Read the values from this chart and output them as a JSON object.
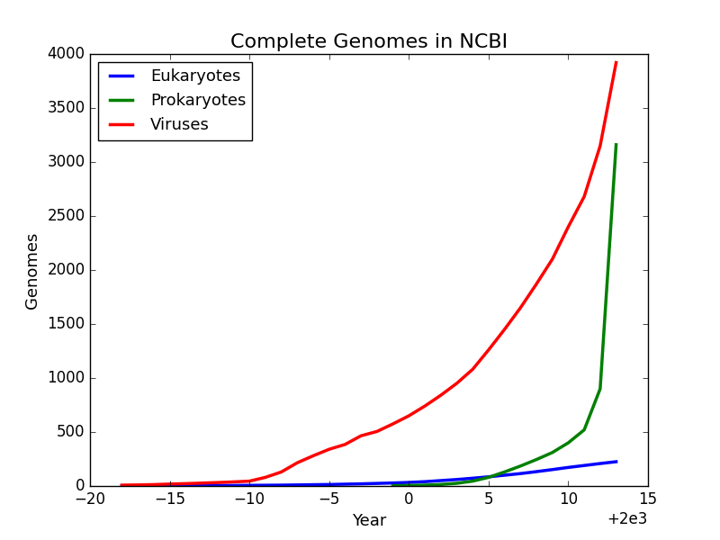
{
  "title": "Complete Genomes in NCBI",
  "xlabel": "Year",
  "ylabel": "Genomes",
  "xlim": [
    1980,
    2015
  ],
  "ylim": [
    0,
    4000
  ],
  "xticks": [
    1980,
    1985,
    1990,
    1995,
    2000,
    2005,
    2010,
    2015
  ],
  "yticks": [
    0,
    500,
    1000,
    1500,
    2000,
    2500,
    3000,
    3500,
    4000
  ],
  "eukaryotes": {
    "label": "Eukaryotes",
    "color": "#0000ff",
    "years": [
      1982,
      1983,
      1984,
      1985,
      1986,
      1987,
      1988,
      1989,
      1990,
      1991,
      1992,
      1993,
      1994,
      1995,
      1996,
      1997,
      1998,
      1999,
      2000,
      2001,
      2002,
      2003,
      2004,
      2005,
      2006,
      2007,
      2008,
      2009,
      2010,
      2011,
      2012,
      2013
    ],
    "values": [
      2,
      2,
      3,
      3,
      4,
      4,
      5,
      5,
      6,
      7,
      8,
      10,
      12,
      14,
      17,
      20,
      24,
      28,
      33,
      40,
      50,
      60,
      72,
      85,
      100,
      115,
      133,
      152,
      172,
      190,
      208,
      225
    ]
  },
  "prokaryotes": {
    "label": "Prokaryotes",
    "color": "#008000",
    "years": [
      1999,
      2000,
      2001,
      2002,
      2003,
      2004,
      2005,
      2006,
      2007,
      2008,
      2009,
      2010,
      2011,
      2012,
      2013
    ],
    "values": [
      3,
      5,
      8,
      14,
      25,
      45,
      80,
      130,
      185,
      245,
      310,
      400,
      520,
      900,
      3160
    ]
  },
  "viruses": {
    "label": "Viruses",
    "color": "#ff0000",
    "years": [
      1982,
      1983,
      1984,
      1985,
      1986,
      1987,
      1988,
      1989,
      1990,
      1991,
      1992,
      1993,
      1994,
      1995,
      1996,
      1997,
      1998,
      1999,
      2000,
      2001,
      2002,
      2003,
      2004,
      2005,
      2006,
      2007,
      2008,
      2009,
      2010,
      2011,
      2012,
      2013
    ],
    "values": [
      8,
      10,
      13,
      18,
      22,
      27,
      32,
      38,
      45,
      80,
      130,
      215,
      280,
      340,
      385,
      465,
      505,
      575,
      650,
      740,
      840,
      950,
      1080,
      1260,
      1450,
      1650,
      1870,
      2100,
      2400,
      2680,
      3150,
      3920
    ]
  },
  "linewidth": 2.5,
  "title_fontsize": 16,
  "label_fontsize": 13,
  "tick_fontsize": 12,
  "legend_fontsize": 13
}
